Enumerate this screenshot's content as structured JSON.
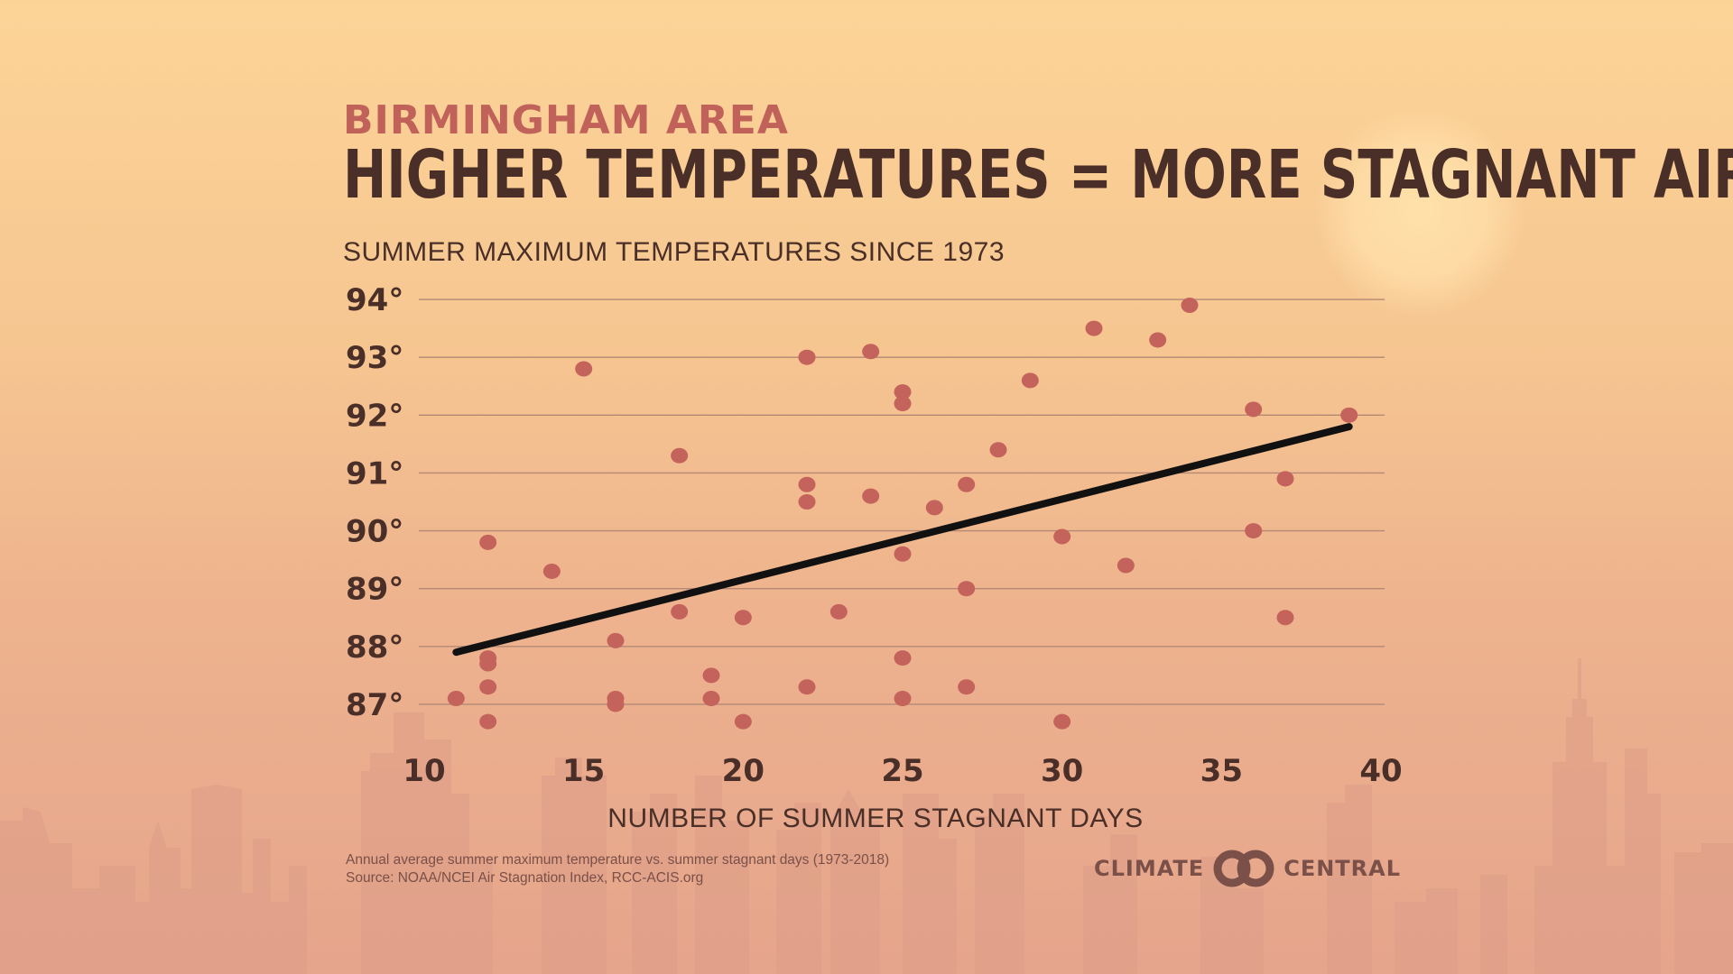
{
  "header": {
    "eyebrow": "BIRMINGHAM AREA",
    "title": "HIGHER TEMPERATURES = MORE STAGNANT AIR"
  },
  "chart_data": {
    "type": "scatter",
    "subtitle": "SUMMER MAXIMUM TEMPERATURES SINCE 1973",
    "xlabel": "NUMBER OF SUMMER STAGNANT DAYS",
    "ylabel": "",
    "xlim": [
      10,
      40
    ],
    "ylim": [
      86.5,
      94.5
    ],
    "x_ticks": [
      10,
      15,
      20,
      25,
      30,
      35,
      40
    ],
    "x_tick_labels": [
      "10",
      "15",
      "20",
      "25",
      "30",
      "35",
      "40"
    ],
    "y_ticks": [
      87,
      88,
      89,
      90,
      91,
      92,
      93,
      94
    ],
    "y_tick_labels": [
      "87°",
      "88°",
      "89°",
      "90°",
      "91°",
      "92°",
      "93°",
      "94°"
    ],
    "grid": "horizontal",
    "legend": "none",
    "series": [
      {
        "points": [
          {
            "x": 11,
            "y": 87.1
          },
          {
            "x": 12,
            "y": 89.8
          },
          {
            "x": 12,
            "y": 87.8
          },
          {
            "x": 12,
            "y": 87.7
          },
          {
            "x": 12,
            "y": 87.3
          },
          {
            "x": 12,
            "y": 86.7
          },
          {
            "x": 14,
            "y": 89.3
          },
          {
            "x": 15,
            "y": 92.8
          },
          {
            "x": 16,
            "y": 88.1
          },
          {
            "x": 16,
            "y": 87.1
          },
          {
            "x": 16,
            "y": 87.0
          },
          {
            "x": 18,
            "y": 91.3
          },
          {
            "x": 18,
            "y": 88.6
          },
          {
            "x": 19,
            "y": 87.5
          },
          {
            "x": 19,
            "y": 87.1
          },
          {
            "x": 20,
            "y": 88.5
          },
          {
            "x": 20,
            "y": 86.7
          },
          {
            "x": 22,
            "y": 93.0
          },
          {
            "x": 22,
            "y": 90.8
          },
          {
            "x": 22,
            "y": 90.5
          },
          {
            "x": 22,
            "y": 87.3
          },
          {
            "x": 23,
            "y": 88.6
          },
          {
            "x": 24,
            "y": 93.1
          },
          {
            "x": 24,
            "y": 90.6
          },
          {
            "x": 25,
            "y": 92.4
          },
          {
            "x": 25,
            "y": 92.2
          },
          {
            "x": 25,
            "y": 89.6
          },
          {
            "x": 25,
            "y": 87.8
          },
          {
            "x": 25,
            "y": 87.1
          },
          {
            "x": 26,
            "y": 90.4
          },
          {
            "x": 27,
            "y": 90.8
          },
          {
            "x": 27,
            "y": 89.0
          },
          {
            "x": 27,
            "y": 87.3
          },
          {
            "x": 28,
            "y": 91.4
          },
          {
            "x": 29,
            "y": 92.6
          },
          {
            "x": 30,
            "y": 89.9
          },
          {
            "x": 30,
            "y": 86.7
          },
          {
            "x": 31,
            "y": 93.5
          },
          {
            "x": 32,
            "y": 89.4
          },
          {
            "x": 33,
            "y": 93.3
          },
          {
            "x": 34,
            "y": 93.9
          },
          {
            "x": 36,
            "y": 92.1
          },
          {
            "x": 36,
            "y": 90.0
          },
          {
            "x": 37,
            "y": 90.9
          },
          {
            "x": 37,
            "y": 88.5
          },
          {
            "x": 39,
            "y": 92.0
          }
        ]
      }
    ],
    "trendline": {
      "x1": 11,
      "y1": 87.9,
      "x2": 39,
      "y2": 91.8
    },
    "colors": {
      "points": "#c4625c",
      "trendline": "#111111",
      "grid": "#b48874",
      "text": "#4a2f28"
    }
  },
  "footer": {
    "note": "Annual average summer maximum temperature vs. summer stagnant days (1973-2018)",
    "source": "Source: NOAA/NCEI Air Stagnation Index, RCC-ACIS.org"
  },
  "brand": {
    "left": "CLIMATE",
    "right": "CENTRAL",
    "logo_icon": "interlocking-rings-icon"
  }
}
